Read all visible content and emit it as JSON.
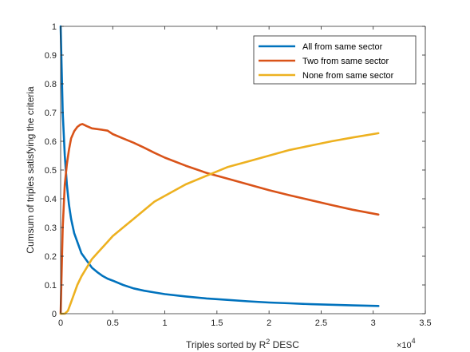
{
  "chart_data": {
    "type": "line",
    "title": "",
    "xlabel_prefix": "Triples sorted by R",
    "xlabel_sup": "2",
    "xlabel_suffix": " DESC",
    "ylabel": "Cumsum of triples satisfying the criteria",
    "x_exponent_base": "×10",
    "x_exponent_power": "4",
    "xlim": [
      0,
      35000
    ],
    "ylim": [
      0,
      1
    ],
    "x_ticks": [
      0,
      5000,
      10000,
      15000,
      20000,
      25000,
      30000,
      35000
    ],
    "x_tick_labels": [
      "0",
      "0.5",
      "1",
      "1.5",
      "2",
      "2.5",
      "3",
      "3.5"
    ],
    "y_ticks": [
      0,
      0.1,
      0.2,
      0.3,
      0.4,
      0.5,
      0.6,
      0.7,
      0.8,
      0.9,
      1
    ],
    "y_tick_labels": [
      "0",
      "0.1",
      "0.2",
      "0.3",
      "0.4",
      "0.5",
      "0.6",
      "0.7",
      "0.8",
      "0.9",
      "1"
    ],
    "grid": false,
    "legend_position": "top-right",
    "series": [
      {
        "name": "All from same sector",
        "color": "#0072BD",
        "x": [
          0,
          100,
          200,
          400,
          600,
          800,
          1000,
          1300,
          1600,
          2000,
          2500,
          3000,
          3500,
          4000,
          4500,
          5000,
          6000,
          7000,
          8000,
          9000,
          10000,
          12000,
          14000,
          16000,
          18000,
          20000,
          22000,
          24000,
          26000,
          28000,
          30500
        ],
        "y": [
          1.0,
          0.85,
          0.7,
          0.55,
          0.45,
          0.38,
          0.33,
          0.28,
          0.25,
          0.21,
          0.185,
          0.16,
          0.145,
          0.132,
          0.122,
          0.115,
          0.1,
          0.088,
          0.08,
          0.074,
          0.068,
          0.06,
          0.053,
          0.048,
          0.043,
          0.039,
          0.036,
          0.033,
          0.031,
          0.029,
          0.027
        ]
      },
      {
        "name": "Two from same sector",
        "color": "#D95319",
        "x": [
          0,
          100,
          200,
          400,
          600,
          800,
          1000,
          1300,
          1600,
          1900,
          2100,
          2500,
          3000,
          4000,
          4500,
          5000,
          6000,
          7000,
          8000,
          9000,
          10000,
          12000,
          14000,
          16000,
          18000,
          20000,
          22000,
          24000,
          26000,
          28000,
          30500
        ],
        "y": [
          0.0,
          0.15,
          0.3,
          0.45,
          0.52,
          0.57,
          0.61,
          0.635,
          0.65,
          0.658,
          0.66,
          0.653,
          0.645,
          0.64,
          0.637,
          0.625,
          0.61,
          0.595,
          0.578,
          0.56,
          0.543,
          0.515,
          0.49,
          0.47,
          0.45,
          0.43,
          0.412,
          0.395,
          0.378,
          0.362,
          0.345
        ]
      },
      {
        "name": "None from same sector",
        "color": "#EDB120",
        "x": [
          0,
          400,
          700,
          1000,
          1300,
          1600,
          2000,
          2500,
          3000,
          3500,
          4000,
          4500,
          5000,
          6000,
          7000,
          8000,
          9000,
          10000,
          12000,
          14000,
          16000,
          18000,
          20000,
          22000,
          24000,
          26000,
          28000,
          30500
        ],
        "y": [
          0.0,
          0.0,
          0.01,
          0.04,
          0.07,
          0.1,
          0.13,
          0.16,
          0.19,
          0.21,
          0.23,
          0.25,
          0.27,
          0.3,
          0.33,
          0.36,
          0.39,
          0.41,
          0.45,
          0.48,
          0.51,
          0.53,
          0.55,
          0.57,
          0.585,
          0.6,
          0.613,
          0.628
        ]
      }
    ]
  }
}
